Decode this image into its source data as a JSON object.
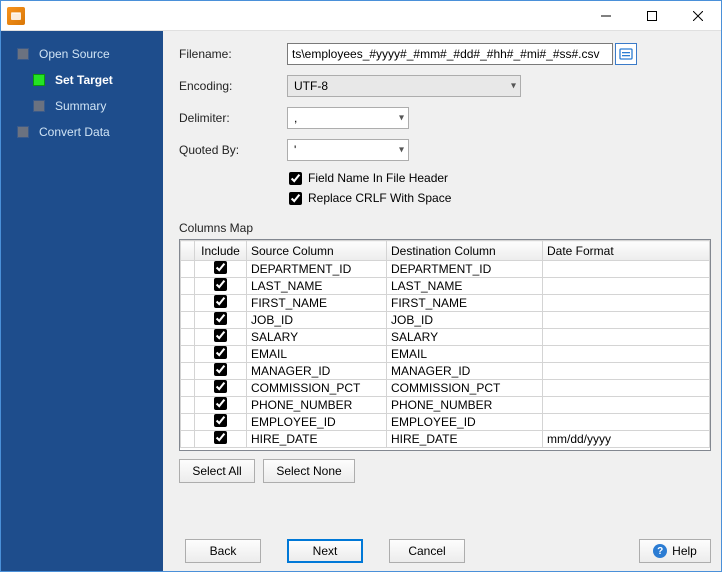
{
  "titlebar": {
    "title": ""
  },
  "sidebar": {
    "steps": [
      {
        "label": "Open Source",
        "active": false,
        "sub": false
      },
      {
        "label": "Set Target",
        "active": true,
        "sub": true
      },
      {
        "label": "Summary",
        "active": false,
        "sub": true
      },
      {
        "label": "Convert Data",
        "active": false,
        "sub": false
      }
    ]
  },
  "form": {
    "filename_label": "Filename:",
    "filename_value": "ts\\employees_#yyyy#_#mm#_#dd#_#hh#_#mi#_#ss#.csv",
    "encoding_label": "Encoding:",
    "encoding_value": "UTF-8",
    "delimiter_label": "Delimiter:",
    "delimiter_value": ",",
    "quotedby_label": "Quoted By:",
    "quotedby_value": "'",
    "chk_header_label": "Field Name In File Header",
    "chk_header_checked": true,
    "chk_crlf_label": "Replace CRLF With Space",
    "chk_crlf_checked": true
  },
  "columns_map": {
    "title": "Columns Map",
    "headers": {
      "include": "Include",
      "source": "Source Column",
      "dest": "Destination Column",
      "datefmt": "Date Format"
    },
    "rows": [
      {
        "include": true,
        "src": "DEPARTMENT_ID",
        "dst": "DEPARTMENT_ID",
        "fmt": ""
      },
      {
        "include": true,
        "src": "LAST_NAME",
        "dst": "LAST_NAME",
        "fmt": ""
      },
      {
        "include": true,
        "src": "FIRST_NAME",
        "dst": "FIRST_NAME",
        "fmt": ""
      },
      {
        "include": true,
        "src": "JOB_ID",
        "dst": "JOB_ID",
        "fmt": ""
      },
      {
        "include": true,
        "src": "SALARY",
        "dst": "SALARY",
        "fmt": ""
      },
      {
        "include": true,
        "src": "EMAIL",
        "dst": "EMAIL",
        "fmt": ""
      },
      {
        "include": true,
        "src": "MANAGER_ID",
        "dst": "MANAGER_ID",
        "fmt": ""
      },
      {
        "include": true,
        "src": "COMMISSION_PCT",
        "dst": "COMMISSION_PCT",
        "fmt": ""
      },
      {
        "include": true,
        "src": "PHONE_NUMBER",
        "dst": "PHONE_NUMBER",
        "fmt": ""
      },
      {
        "include": true,
        "src": "EMPLOYEE_ID",
        "dst": "EMPLOYEE_ID",
        "fmt": ""
      },
      {
        "include": true,
        "src": "HIRE_DATE",
        "dst": "HIRE_DATE",
        "fmt": "mm/dd/yyyy"
      }
    ]
  },
  "buttons": {
    "select_all": "Select All",
    "select_none": "Select None",
    "back": "Back",
    "next": "Next",
    "cancel": "Cancel",
    "help": "Help"
  },
  "colors": {
    "sidebar_bg": "#1e4d8c",
    "active_step": "#24e324",
    "primary_border": "#0078d7"
  }
}
